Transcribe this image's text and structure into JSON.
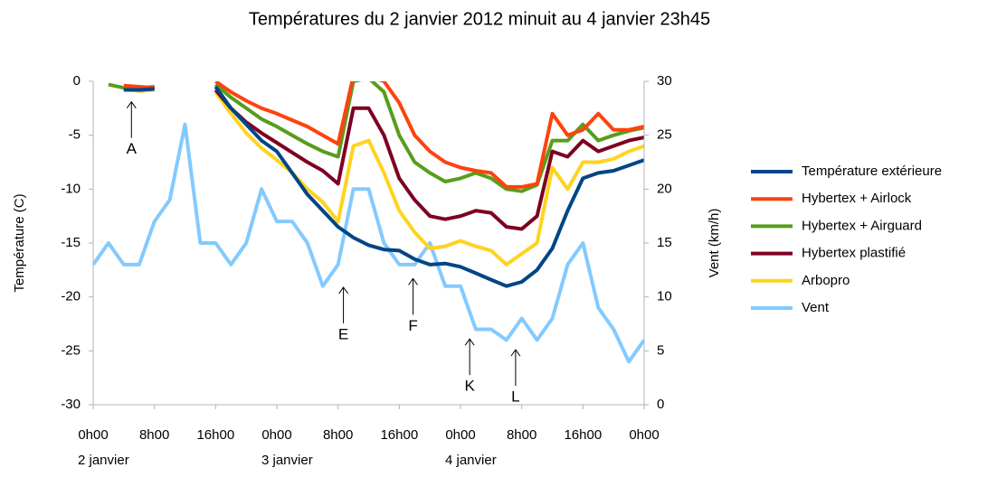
{
  "chart_data": {
    "type": "line",
    "title": "Températures du 2 janvier 2012 minuit au 4 janvier 23h45",
    "y_label": "Température (C)",
    "y2_label": "Vent (km/h)",
    "x": [
      0,
      2,
      4,
      6,
      8,
      10,
      12,
      14,
      16,
      18,
      20,
      22,
      24,
      26,
      28,
      30,
      32,
      34,
      36,
      38,
      40,
      42,
      44,
      46,
      48,
      50,
      52,
      54,
      56,
      58,
      60,
      62,
      64,
      66,
      68,
      70,
      72
    ],
    "xlim": [
      0,
      72
    ],
    "xticks": [
      {
        "value": 0,
        "label": "0h00"
      },
      {
        "value": 8,
        "label": "8h00"
      },
      {
        "value": 16,
        "label": "16h00"
      },
      {
        "value": 24,
        "label": "0h00"
      },
      {
        "value": 32,
        "label": "8h00"
      },
      {
        "value": 40,
        "label": "16h00"
      },
      {
        "value": 48,
        "label": "0h00"
      },
      {
        "value": 56,
        "label": "8h00"
      },
      {
        "value": 64,
        "label": "16h00"
      },
      {
        "value": 72,
        "label": "0h00"
      }
    ],
    "day_labels": [
      {
        "value": 0,
        "label": "2 janvier"
      },
      {
        "value": 24,
        "label": "3 janvier"
      },
      {
        "value": 48,
        "label": "4 janvier"
      }
    ],
    "ylim": [
      -30,
      0
    ],
    "yticks": [
      -30,
      -25,
      -20,
      -15,
      -10,
      -5,
      0
    ],
    "y2lim": [
      0,
      30
    ],
    "y2ticks": [
      0,
      5,
      10,
      15,
      20,
      25,
      30
    ],
    "grid": false,
    "legend": "right",
    "series": [
      {
        "name": "Température extérieure",
        "color": "#004586",
        "values": [
          null,
          null,
          -0.8,
          -0.8,
          -0.7,
          null,
          null,
          null,
          -0.5,
          -2.5,
          -4,
          -5.5,
          -6.5,
          -8.5,
          -10.5,
          -12,
          -13.5,
          -14.5,
          -15.2,
          -15.6,
          -15.7,
          -16.5,
          -17,
          -16.9,
          -17.2,
          -17.8,
          -18.4,
          -19,
          -18.6,
          -17.5,
          -15.5,
          -12,
          -9,
          -8.5,
          -8.3,
          -7.8,
          -7.3
        ]
      },
      {
        "name": "Hybertex + Airlock",
        "color": "#ff420e",
        "values": [
          null,
          null,
          -0.4,
          -0.5,
          -0.6,
          null,
          null,
          null,
          0,
          -1,
          -1.8,
          -2.5,
          -3,
          -3.6,
          -4.2,
          -5,
          -5.8,
          0.5,
          0.5,
          0,
          -2,
          -5,
          -6.5,
          -7.5,
          -8,
          -8.3,
          -8.5,
          -9.8,
          -9.8,
          -9.5,
          -3,
          -5,
          -4.5,
          -3,
          -4.5,
          -4.5,
          -4.2
        ]
      },
      {
        "name": "Hybertex + Airguard",
        "color": "#579d1c",
        "values": [
          null,
          -0.3,
          -0.6,
          -0.6,
          -0.5,
          null,
          null,
          null,
          -0.3,
          -1.5,
          -2.5,
          -3.5,
          -4.2,
          -5,
          -5.8,
          -6.5,
          -7,
          0,
          0.3,
          -1,
          -5,
          -7.5,
          -8.5,
          -9.3,
          -9,
          -8.5,
          -9,
          -10,
          -10.2,
          -9.6,
          -5.5,
          -5.5,
          -4,
          -5.5,
          -5,
          -4.6,
          -4.3
        ]
      },
      {
        "name": "Hybertex plastifié",
        "color": "#7e0021",
        "values": [
          null,
          null,
          -0.6,
          -0.8,
          -0.7,
          null,
          null,
          null,
          -0.8,
          -2.5,
          -3.8,
          -4.8,
          -5.7,
          -6.6,
          -7.5,
          -8.3,
          -9.5,
          -2.5,
          -2.5,
          -5,
          -9,
          -11,
          -12.5,
          -12.8,
          -12.5,
          -12,
          -12.2,
          -13.5,
          -13.7,
          -12.5,
          -6.5,
          -7,
          -5.5,
          -6.5,
          -6,
          -5.5,
          -5.2
        ]
      },
      {
        "name": "Arbopro",
        "color": "#ffd320",
        "values": [
          null,
          null,
          -0.7,
          -0.9,
          -0.8,
          null,
          null,
          null,
          -1,
          -3,
          -4.8,
          -6.2,
          -7.3,
          -8.5,
          -10,
          -11.2,
          -13,
          -6,
          -5.5,
          -8.5,
          -12,
          -14,
          -15.5,
          -15.3,
          -14.8,
          -15.3,
          -15.7,
          -17,
          -16,
          -15,
          -8,
          -10,
          -7.5,
          -7.5,
          -7.2,
          -6.5,
          -6
        ]
      },
      {
        "name": "Vent",
        "color": "#83caff",
        "axis": "y2",
        "values": [
          13,
          15,
          13,
          13,
          17,
          19,
          26,
          15,
          15,
          13,
          15,
          20,
          17,
          17,
          15,
          11,
          13,
          20,
          20,
          15,
          13,
          13,
          15,
          11,
          11,
          7,
          7,
          6,
          8,
          6,
          8,
          13,
          15,
          9,
          7,
          4,
          6
        ]
      }
    ],
    "annotations": [
      {
        "label": "A",
        "x": 5,
        "y": -1.9
      },
      {
        "label": "E",
        "x": 32.7,
        "y": -19.1
      },
      {
        "label": "F",
        "x": 41.8,
        "y": -18.3
      },
      {
        "label": "K",
        "x": 49.2,
        "y": -23.9
      },
      {
        "label": "L",
        "x": 55.2,
        "y": -24.9
      }
    ]
  }
}
